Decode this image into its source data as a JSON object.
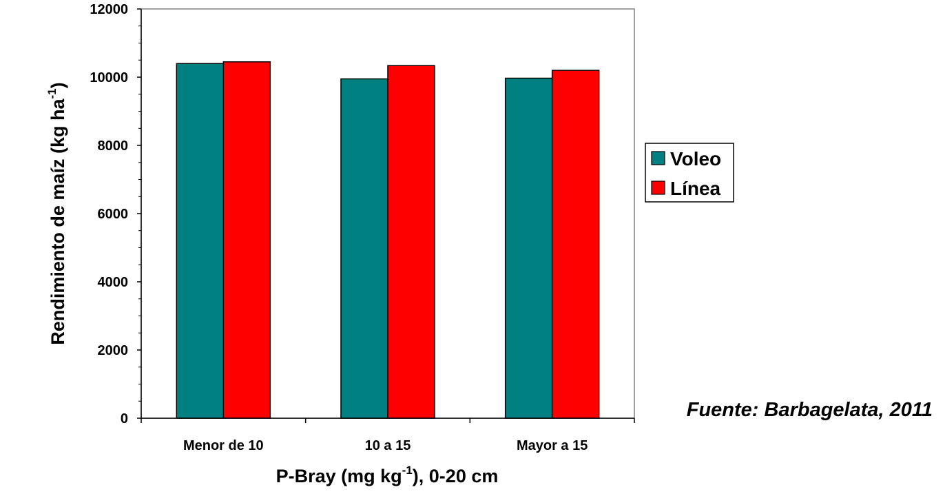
{
  "chart_data": {
    "type": "bar",
    "categories": [
      "Menor de 10",
      "10 a 15",
      "Mayor a 15"
    ],
    "series": [
      {
        "name": "Voleo",
        "color": "#008080",
        "values": [
          10400,
          9950,
          9970
        ]
      },
      {
        "name": "Línea",
        "color": "#ff0000",
        "values": [
          10450,
          10340,
          10200
        ]
      }
    ],
    "ylim": [
      0,
      12000
    ],
    "yticks": [
      0,
      2000,
      4000,
      6000,
      8000,
      10000,
      12000
    ],
    "ylabel": {
      "main": "Rendimiento de maíz (kg ha",
      "sup": "-1",
      "end": ")"
    },
    "xlabel": {
      "main": "P-Bray (mg kg",
      "sup": "-1",
      "end": "), 0-20 cm"
    },
    "legend_position": "right",
    "grid": false
  },
  "source": "Fuente: Barbagelata, 2011"
}
